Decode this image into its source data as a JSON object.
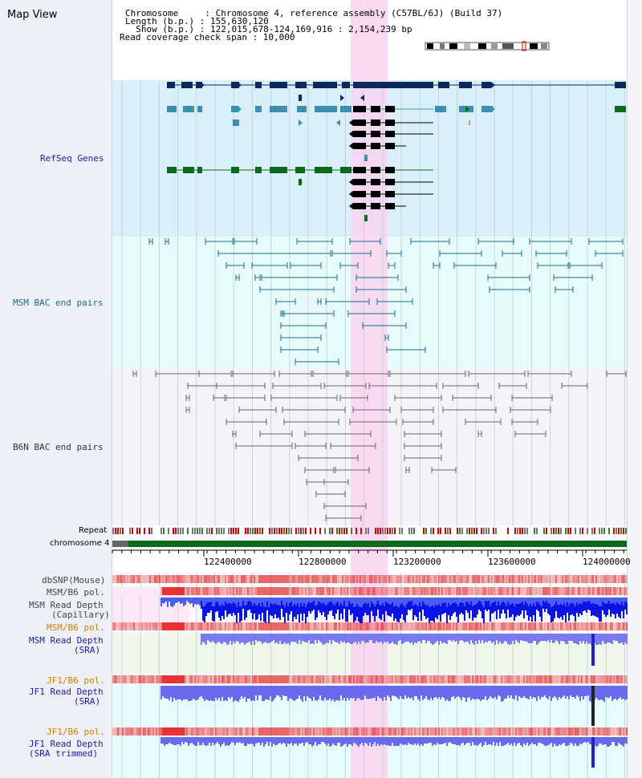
{
  "header": {
    "view_title": "Map View",
    "lines": [
      "Chromosome     : Chromosome 4, reference assembly (C57BL/6J) (Build 37)",
      "Length (b.p.) : 155,630,120",
      "  Show (b.p.) : 122,015,678-124,169,916 : 2,154,239 bp",
      "Read coverage check span : 10,000"
    ]
  },
  "tracks": {
    "refseq": "RefSeq Genes",
    "msm_bac": "MSM BAC end pairs",
    "b6n_bac": "B6N BAC end pairs",
    "repeat": "Repeat",
    "chromosome": "chromosome 4",
    "dbsnp": "dbSNP(Mouse)",
    "msm_b6_pol_1": "MSM/B6 pol.",
    "msm_depth_cap_1": "MSM Read Depth",
    "msm_depth_cap_2": "(Capillary)",
    "msm_b6_pol_2": "MSM/B6 pol.",
    "msm_depth_sra_1": "MSM Read Depth",
    "msm_depth_sra_2": "(SRA)",
    "jf1_b6_pol_1": "JF1/B6 pol.",
    "jf1_depth_sra_1": "JF1 Read Depth",
    "jf1_depth_sra_2": "(SRA)",
    "jf1_b6_pol_2": "JF1/B6 pol.",
    "jf1_depth_trim_1": "JF1 Read Depth",
    "jf1_depth_trim_2": "(SRA trimmed)"
  },
  "axis_ticks": [
    "122400000",
    "122800000",
    "123200000",
    "123600000",
    "124000000"
  ],
  "colors": {
    "refseq_bg": "#daf0f9",
    "msm_bg": "#e8fbfb",
    "b6n_bg": "#f4f4f8",
    "highlight": "#f8d4f0",
    "track_label": "#1a1ab0",
    "pol_label": "#d08000",
    "depth_blue": "#0a14e6"
  }
}
